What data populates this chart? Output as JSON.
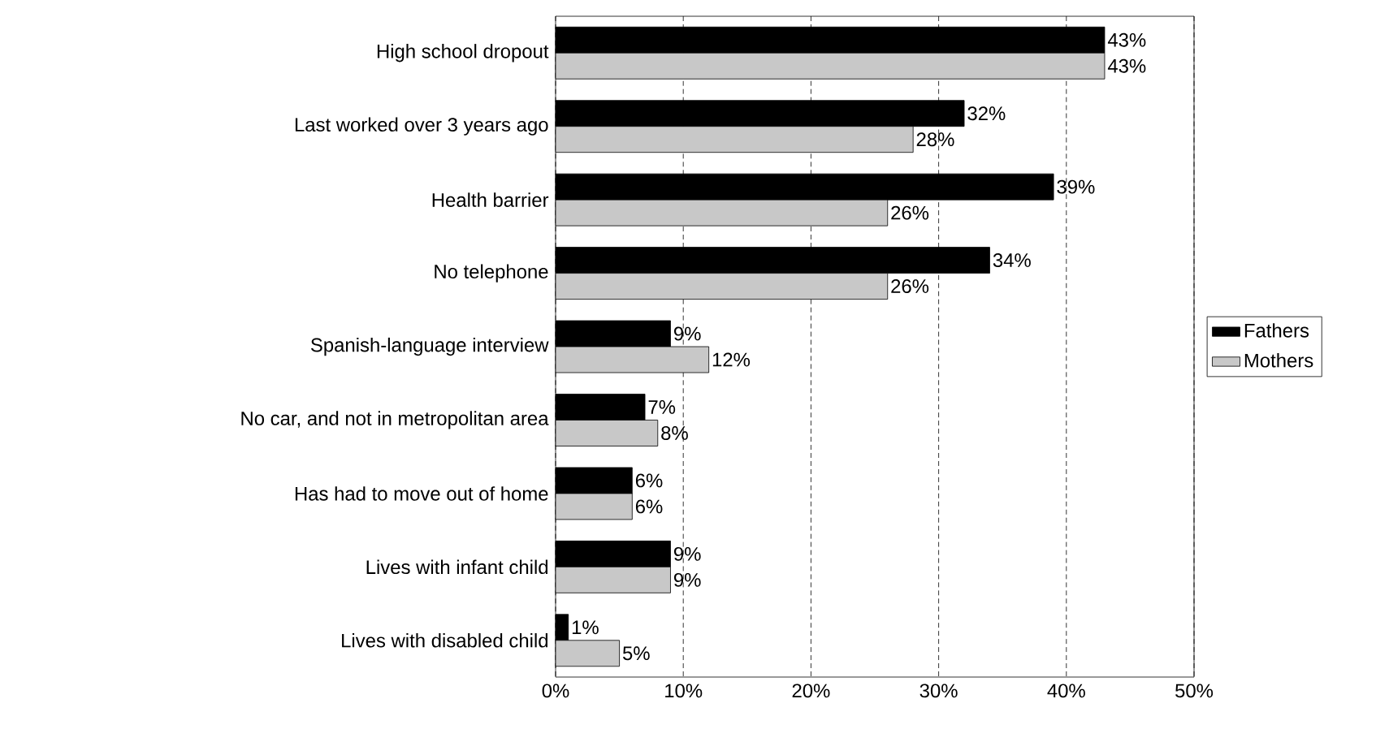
{
  "chart_data": {
    "type": "bar",
    "orientation": "horizontal",
    "categories": [
      "High school dropout",
      "Last worked over 3 years ago",
      "Health barrier",
      "No telephone",
      "Spanish-language interview",
      "No car, and not in metropolitan area",
      "Has had to move out of home",
      "Lives with infant child",
      "Lives with disabled child"
    ],
    "series": [
      {
        "name": "Fathers",
        "color": "#000000",
        "values": [
          43,
          32,
          39,
          34,
          9,
          7,
          6,
          9,
          1
        ],
        "value_labels": [
          "43%",
          "32%",
          "39%",
          "34%",
          "9%",
          "7%",
          "6%",
          "9%",
          "1%"
        ]
      },
      {
        "name": "Mothers",
        "color": "#c8c8c8",
        "values": [
          43,
          28,
          26,
          26,
          12,
          8,
          6,
          9,
          5
        ],
        "value_labels": [
          "43%",
          "28%",
          "26%",
          "26%",
          "12%",
          "8%",
          "6%",
          "9%",
          "5%"
        ]
      }
    ],
    "xlim": [
      0,
      50
    ],
    "xticks": [
      {
        "value": 0,
        "label": "0%"
      },
      {
        "value": 10,
        "label": "10%"
      },
      {
        "value": 20,
        "label": "20%"
      },
      {
        "value": 30,
        "label": "30%"
      },
      {
        "value": 40,
        "label": "40%"
      },
      {
        "value": 50,
        "label": "50%"
      }
    ],
    "grid": "x",
    "legend": "right"
  }
}
